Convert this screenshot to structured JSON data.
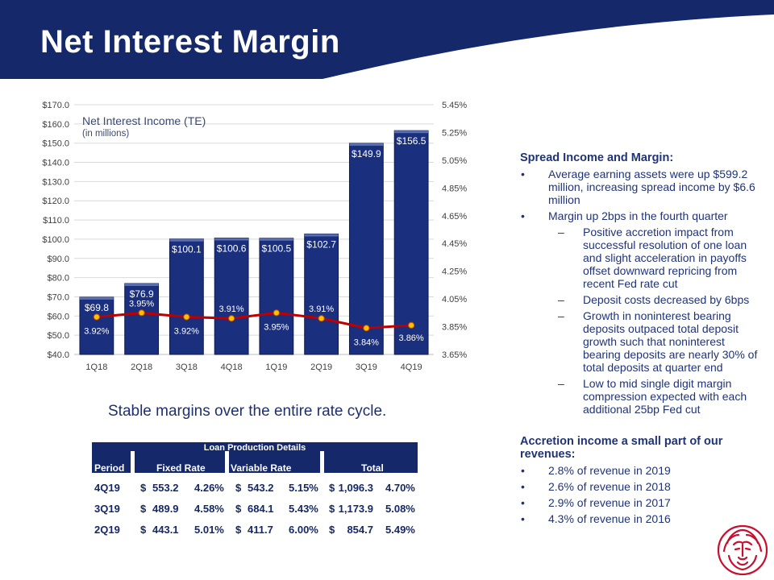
{
  "title": "Net Interest Margin",
  "colors": {
    "navy": "#14286a",
    "bar_fill": "#1a2f7d",
    "line": "#c00000",
    "marker": "#ffc000",
    "text": "#1f3478",
    "logo": "#c8102e"
  },
  "chart_data": {
    "type": "bar",
    "title": "Net Interest Income (TE)",
    "subtitle": "(in millions)",
    "categories": [
      "1Q18",
      "2Q18",
      "3Q18",
      "4Q18",
      "1Q19",
      "2Q19",
      "3Q19",
      "4Q19"
    ],
    "series": [
      {
        "type": "bar",
        "axis": "left",
        "values": [
          69.8,
          76.9,
          100.1,
          100.6,
          100.5,
          102.7,
          149.9,
          156.5
        ],
        "labels": [
          "$69.8",
          "$76.9",
          "$100.1",
          "$100.6",
          "$100.5",
          "$102.7",
          "$149.9",
          "$156.5"
        ]
      },
      {
        "type": "line",
        "axis": "right",
        "values": [
          3.92,
          3.95,
          3.92,
          3.91,
          3.95,
          3.91,
          3.84,
          3.86
        ],
        "labels": [
          "3.92%",
          "3.95%",
          "3.92%",
          "3.91%",
          "3.95%",
          "3.91%",
          "3.84%",
          "3.86%"
        ]
      }
    ],
    "ylim_left": [
      40,
      170
    ],
    "yticks_left": [
      "$40.0",
      "$50.0",
      "$60.0",
      "$70.0",
      "$80.0",
      "$90.0",
      "$100.0",
      "$110.0",
      "$120.0",
      "$130.0",
      "$140.0",
      "$150.0",
      "$160.0",
      "$170.0"
    ],
    "ylim_right": [
      3.65,
      5.45
    ],
    "yticks_right": [
      "3.65%",
      "3.85%",
      "4.05%",
      "4.25%",
      "4.45%",
      "4.65%",
      "4.85%",
      "5.05%",
      "5.25%",
      "5.45%"
    ],
    "grid": true,
    "legend": "none"
  },
  "caption": "Stable margins over the entire rate cycle.",
  "loan_table": {
    "title": "Loan Production Details",
    "headers": [
      "Period",
      "Fixed Rate",
      "Variable Rate",
      "Total"
    ],
    "rows": [
      {
        "period": "4Q19",
        "fixed_amt": "553.2",
        "fixed_rate": "4.26%",
        "var_amt": "543.2",
        "var_rate": "5.15%",
        "total_amt": "1,096.3",
        "total_rate": "4.70%"
      },
      {
        "period": "3Q19",
        "fixed_amt": "489.9",
        "fixed_rate": "4.58%",
        "var_amt": "684.1",
        "var_rate": "5.43%",
        "total_amt": "1,173.9",
        "total_rate": "5.08%"
      },
      {
        "period": "2Q19",
        "fixed_amt": "443.1",
        "fixed_rate": "5.01%",
        "var_amt": "411.7",
        "var_rate": "6.00%",
        "total_amt": "854.7",
        "total_rate": "5.49%"
      }
    ],
    "currency": "$"
  },
  "right_panel": {
    "section1_title": "Spread Income and Margin:",
    "s1_b1": "Average earning assets were up $599.2 million, increasing spread income by $6.6 million",
    "s1_b2": "Margin up 2bps in the fourth quarter",
    "s1_sub1": "Positive accretion impact from successful resolution of one loan and slight acceleration in payoffs offset downward repricing from recent Fed rate cut",
    "s1_sub2": "Deposit costs decreased by 6bps",
    "s1_sub3": "Growth in noninterest bearing deposits outpaced total deposit growth such that noninterest bearing deposits are nearly 30% of total deposits at quarter end",
    "s1_sub4": "Low to mid single digit margin compression expected with each additional 25bp Fed cut",
    "section2_title": "Accretion income a small part of our revenues:",
    "s2_b1": "2.8% of revenue in 2019",
    "s2_b2": "2.6% of revenue in 2018",
    "s2_b3": "2.9% of revenue in 2017",
    "s2_b4": "4.3% of revenue in 2016",
    "bullet_mark": "•",
    "sub_mark": "–"
  },
  "logo_icon": "lion-head-icon"
}
